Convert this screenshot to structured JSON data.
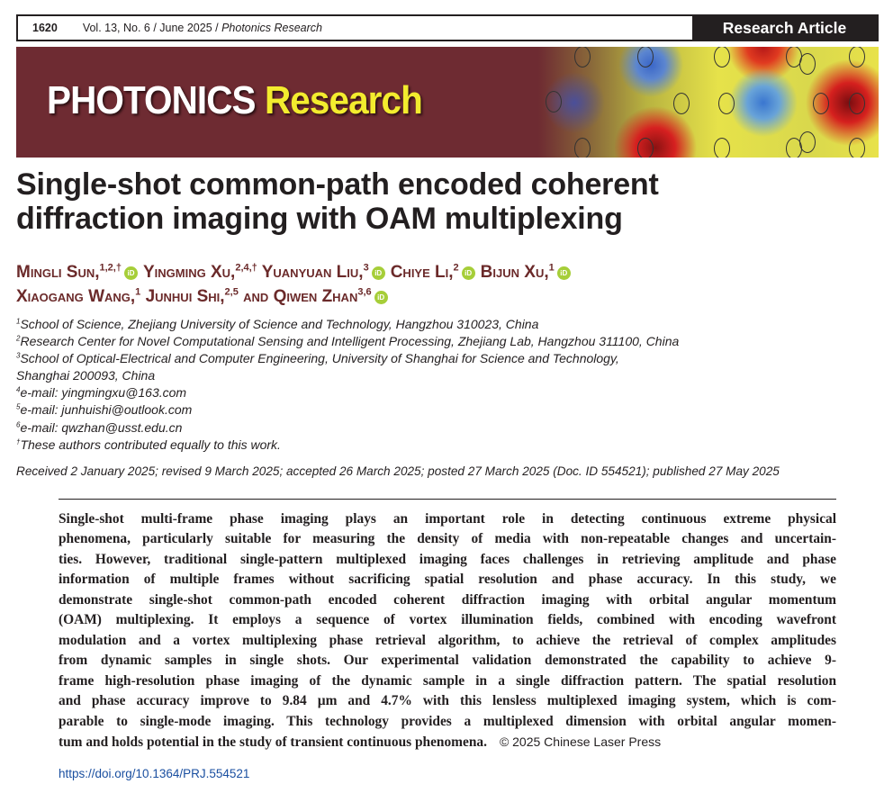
{
  "header": {
    "page": "1620",
    "citation": "Vol. 13, No. 6 / June 2025 / ",
    "journal_italic": "Photonics Research",
    "article_type": "Research Article"
  },
  "banner": {
    "logo_white": "PHOTONICS",
    "logo_yellow": "Research"
  },
  "title": {
    "line1": "Single-shot common-path encoded coherent",
    "line2": "diffraction imaging with OAM multiplexing"
  },
  "authors": [
    {
      "name": "Mingli Sun,",
      "sup": "1,2,†",
      "orcid": true
    },
    {
      "name": "Yingming Xu,",
      "sup": "2,4,†",
      "orcid": false
    },
    {
      "name": "Yuanyuan Liu,",
      "sup": "3",
      "orcid": true
    },
    {
      "name": "Chiye Li,",
      "sup": "2",
      "orcid": true
    },
    {
      "name": "Bijun Xu,",
      "sup": "1",
      "orcid": true
    },
    {
      "name": "Xiaogang Wang,",
      "sup": "1",
      "orcid": false
    },
    {
      "name": "Junhui Shi,",
      "sup": "2,5",
      "orcid": false
    },
    {
      "name": "and Qiwen Zhan",
      "sup": "3,6",
      "orcid": true
    }
  ],
  "orcid_label": "iD",
  "affiliations": [
    {
      "sup": "1",
      "text": "School of Science, Zhejiang University of Science and Technology, Hangzhou 310023, China"
    },
    {
      "sup": "2",
      "text": "Research Center for Novel Computational Sensing and Intelligent Processing, Zhejiang Lab, Hangzhou 311100, China"
    },
    {
      "sup": "3",
      "text": "School of Optical-Electrical and Computer Engineering, University of Shanghai for Science and Technology,"
    },
    {
      "sup": "",
      "text": "Shanghai 200093, China"
    },
    {
      "sup": "4",
      "text": "e-mail: yingmingxu@163.com"
    },
    {
      "sup": "5",
      "text": "e-mail: junhuishi@outlook.com"
    },
    {
      "sup": "6",
      "text": "e-mail: qwzhan@usst.edu.cn"
    },
    {
      "sup": "†",
      "text": "These authors contributed equally to this work."
    }
  ],
  "dates": "Received 2 January 2025; revised 9 March 2025; accepted 26 March 2025; posted 27 March 2025 (Doc. ID 554521); published 27 May 2025",
  "abstract_lines": [
    "Single-shot multi-frame phase imaging plays an important role in detecting continuous extreme physical",
    "phenomena, particularly suitable for measuring the density of media with non-repeatable changes and uncertain-",
    "ties. However, traditional single-pattern multiplexed imaging faces challenges in retrieving amplitude and phase",
    "information of multiple frames without sacrificing spatial resolution and phase accuracy. In this study, we",
    "demonstrate single-shot common-path encoded coherent diffraction imaging with orbital angular momentum",
    "(OAM) multiplexing. It employs a sequence of vortex illumination fields, combined with encoding wavefront",
    "modulation and a vortex multiplexing phase retrieval algorithm, to achieve the retrieval of complex amplitudes",
    "from dynamic samples in single shots. Our experimental validation demonstrated the capability to achieve 9-",
    "frame high-resolution phase imaging of the dynamic sample in a single diffraction pattern. The spatial resolution",
    "and phase accuracy improve to 9.84 µm and 4.7% with this lensless multiplexed imaging system, which is com-",
    "parable to single-mode imaging. This technology provides a multiplexed dimension with orbital angular momen-",
    "tum and holds potential in the study of transient continuous phenomena."
  ],
  "copyright": "© 2025 Chinese Laser Press",
  "doi": "https://doi.org/10.1364/PRJ.554521",
  "colors": {
    "banner": "#6e2b32",
    "author": "#6b2a2a",
    "orcid": "#a6ce39",
    "logo_yellow": "#f3ec2e",
    "link": "#1a4fa0"
  }
}
